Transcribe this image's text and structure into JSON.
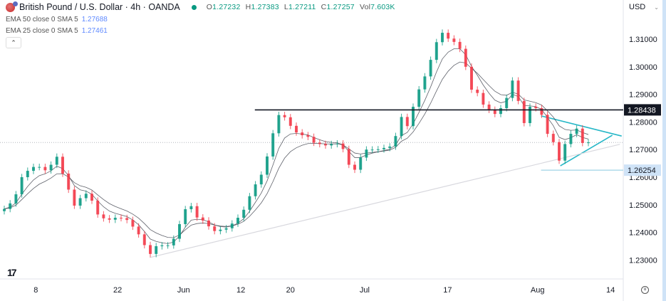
{
  "header": {
    "title": "British Pound / U.S. Dollar · 4h · OANDA",
    "ohlc": {
      "o_label": "O",
      "o": "1.27232",
      "h_label": "H",
      "h": "1.27383",
      "l_label": "L",
      "l": "1.27211",
      "c_label": "C",
      "c": "1.27257",
      "vol_label": "Vol",
      "vol": "7.603K"
    },
    "indicators": [
      {
        "label": "EMA 50 close 0 SMA 5",
        "value": "1.27688"
      },
      {
        "label": "EMA 25 close 0 SMA 5",
        "value": "1.27461"
      }
    ],
    "collapse_icon": "chevron-up-icon",
    "currency": "USD"
  },
  "colors": {
    "up": "#089981",
    "down": "#f23645",
    "ema": "#2a2e39",
    "resistance": "#131722",
    "triangle": "#26b7c7",
    "support": "#9fd3e6",
    "trendline": "#d8d8de",
    "price_line": "#b2b5be"
  },
  "chart_data": {
    "type": "candlestick",
    "title": "",
    "ylim": [
      1.2255,
      1.316
    ],
    "y_ticks": [
      "1.31000",
      "1.30000",
      "1.29000",
      "1.28000",
      "1.27000",
      "1.26000",
      "1.25000",
      "1.24000",
      "1.23000"
    ],
    "x_ticks": [
      {
        "label": "8",
        "bar": 5.4
      },
      {
        "label": "22",
        "bar": 19.4
      },
      {
        "label": "Jun",
        "bar": 30.7
      },
      {
        "label": "12",
        "bar": 40.5
      },
      {
        "label": "20",
        "bar": 49
      },
      {
        "label": "Jul",
        "bar": 61.7
      },
      {
        "label": "17",
        "bar": 75.9
      },
      {
        "label": "Aug",
        "bar": 91.3
      },
      {
        "label": "14",
        "bar": 103.8
      }
    ],
    "closes": [
      1.2485,
      1.2505,
      1.2538,
      1.26,
      1.2623,
      1.2637,
      1.2637,
      1.2625,
      1.2645,
      1.2674,
      1.2613,
      1.2555,
      1.2497,
      1.2524,
      1.254,
      1.2515,
      1.2465,
      1.2451,
      1.2446,
      1.2453,
      1.2452,
      1.2445,
      1.2421,
      1.2393,
      1.2354,
      1.2322,
      1.235,
      1.2353,
      1.2353,
      1.2377,
      1.243,
      1.2484,
      1.2495,
      1.2454,
      1.2443,
      1.2422,
      1.2405,
      1.241,
      1.2415,
      1.2432,
      1.2453,
      1.2482,
      1.2531,
      1.2574,
      1.2609,
      1.2675,
      1.2759,
      1.2825,
      1.2817,
      1.2786,
      1.2762,
      1.2752,
      1.2746,
      1.2725,
      1.272,
      1.2715,
      1.272,
      1.2722,
      1.2702,
      1.2645,
      1.2627,
      1.2671,
      1.27,
      1.27,
      1.2701,
      1.2706,
      1.2711,
      1.2749,
      1.2818,
      1.2785,
      1.2855,
      1.2918,
      1.2965,
      1.3025,
      1.3089,
      1.3123,
      1.3102,
      1.309,
      1.3065,
      1.3,
      1.2917,
      1.2905,
      1.2863,
      1.2844,
      1.2829,
      1.285,
      1.2887,
      1.295,
      1.2876,
      1.2796,
      1.2855,
      1.285,
      1.2826,
      1.2757,
      1.2727,
      1.266,
      1.272,
      1.2757,
      1.2776,
      1.2724,
      1.2726
    ],
    "series": [
      {
        "name": "EMA 50 close 0 SMA 5"
      },
      {
        "name": "EMA 25 close 0 SMA 5"
      }
    ],
    "current_price": 1.27257,
    "levels": [
      {
        "price": 1.28438,
        "label": "1.28438",
        "from_bar": 42.9,
        "style": "resistance"
      },
      {
        "price": 1.26254,
        "label": "1.26254",
        "from_bar": 91.9,
        "style": "support"
      }
    ],
    "trendlines": [
      {
        "name": "triangle-upper",
        "p1": [
          91.9,
          1.2822
        ],
        "p2": [
          105.7,
          1.2749
        ],
        "style": "triangle"
      },
      {
        "name": "triangle-lower",
        "p1": [
          95.2,
          1.2641
        ],
        "p2": [
          104.1,
          1.2752
        ],
        "style": "triangle"
      },
      {
        "name": "long-term-support",
        "p1": [
          24.9,
          1.2309
        ],
        "p2": [
          105.4,
          1.2719
        ],
        "style": "trendline"
      }
    ]
  }
}
